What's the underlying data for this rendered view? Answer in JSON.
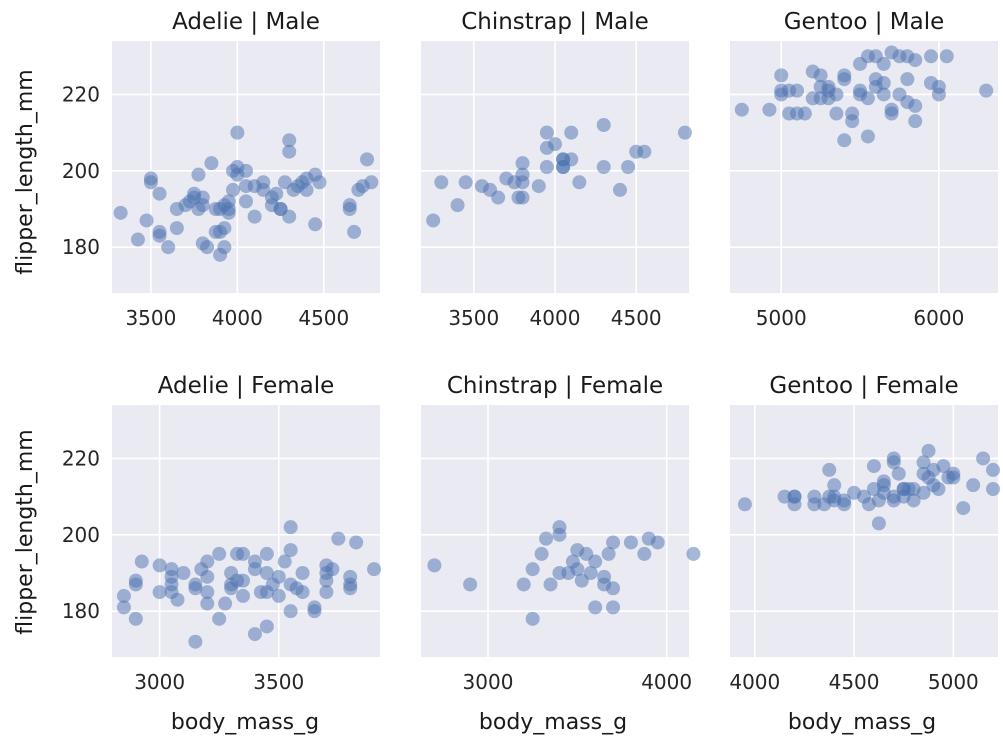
{
  "chart_data": {
    "type": "scatter",
    "xlabel": "body_mass_g",
    "ylabel": "flipper_length_mm",
    "ylim": [
      168,
      234
    ],
    "yticks": [
      180,
      200,
      220
    ],
    "grid": true,
    "point_color": "#4c72b0",
    "panel_background": "#eaeaf2",
    "panels": [
      {
        "title": "Adelie | Male",
        "xlim": [
          3275,
          4825
        ],
        "xticks": [
          3500,
          4000,
          4500
        ],
        "points": [
          [
            3325,
            189
          ],
          [
            3425,
            182
          ],
          [
            3475,
            187
          ],
          [
            3500,
            198
          ],
          [
            3500,
            197
          ],
          [
            3550,
            194
          ],
          [
            3550,
            183
          ],
          [
            3550,
            184
          ],
          [
            3600,
            180
          ],
          [
            3650,
            190
          ],
          [
            3650,
            185
          ],
          [
            3700,
            191
          ],
          [
            3725,
            192
          ],
          [
            3750,
            193
          ],
          [
            3750,
            194
          ],
          [
            3775,
            199
          ],
          [
            3775,
            190
          ],
          [
            3800,
            181
          ],
          [
            3800,
            191
          ],
          [
            3800,
            193
          ],
          [
            3825,
            180
          ],
          [
            3850,
            202
          ],
          [
            3875,
            190
          ],
          [
            3875,
            184
          ],
          [
            3900,
            190
          ],
          [
            3900,
            184
          ],
          [
            3900,
            178
          ],
          [
            3925,
            180
          ],
          [
            3925,
            191
          ],
          [
            3925,
            185
          ],
          [
            3950,
            189
          ],
          [
            3950,
            192
          ],
          [
            3950,
            190
          ],
          [
            3975,
            195
          ],
          [
            3975,
            200
          ],
          [
            4000,
            201
          ],
          [
            4000,
            210
          ],
          [
            4000,
            199
          ],
          [
            4050,
            196
          ],
          [
            4050,
            200
          ],
          [
            4050,
            192
          ],
          [
            4100,
            196
          ],
          [
            4100,
            188
          ],
          [
            4150,
            197
          ],
          [
            4150,
            195
          ],
          [
            4200,
            191
          ],
          [
            4200,
            193
          ],
          [
            4225,
            194
          ],
          [
            4250,
            190
          ],
          [
            4250,
            190
          ],
          [
            4275,
            197
          ],
          [
            4300,
            205
          ],
          [
            4300,
            208
          ],
          [
            4300,
            188
          ],
          [
            4325,
            195
          ],
          [
            4350,
            196
          ],
          [
            4375,
            197
          ],
          [
            4400,
            198
          ],
          [
            4400,
            195
          ],
          [
            4450,
            199
          ],
          [
            4450,
            186
          ],
          [
            4475,
            197
          ],
          [
            4650,
            190
          ],
          [
            4650,
            191
          ],
          [
            4675,
            184
          ],
          [
            4700,
            195
          ],
          [
            4725,
            196
          ],
          [
            4750,
            203
          ],
          [
            4775,
            197
          ]
        ]
      },
      {
        "title": "Chinstrap | Male",
        "xlim": [
          3175,
          4825
        ],
        "xticks": [
          3500,
          4000,
          4500
        ],
        "points": [
          [
            3250,
            187
          ],
          [
            3300,
            197
          ],
          [
            3400,
            191
          ],
          [
            3450,
            197
          ],
          [
            3550,
            196
          ],
          [
            3600,
            195
          ],
          [
            3650,
            193
          ],
          [
            3700,
            198
          ],
          [
            3750,
            197
          ],
          [
            3775,
            193
          ],
          [
            3800,
            197
          ],
          [
            3800,
            202
          ],
          [
            3800,
            199
          ],
          [
            3800,
            193
          ],
          [
            3900,
            196
          ],
          [
            3950,
            206
          ],
          [
            3950,
            210
          ],
          [
            3950,
            201
          ],
          [
            4000,
            207
          ],
          [
            4050,
            203
          ],
          [
            4050,
            201
          ],
          [
            4050,
            203
          ],
          [
            4050,
            201
          ],
          [
            4100,
            203
          ],
          [
            4100,
            210
          ],
          [
            4150,
            197
          ],
          [
            4300,
            201
          ],
          [
            4300,
            212
          ],
          [
            4400,
            195
          ],
          [
            4450,
            201
          ],
          [
            4500,
            205
          ],
          [
            4550,
            205
          ],
          [
            4800,
            210
          ]
        ]
      },
      {
        "title": "Gentoo | Male",
        "xlim": [
          4675,
          6375
        ],
        "xticks": [
          5000,
          6000
        ],
        "points": [
          [
            4750,
            216
          ],
          [
            4925,
            216
          ],
          [
            5000,
            225
          ],
          [
            5000,
            221
          ],
          [
            5000,
            220
          ],
          [
            5050,
            215
          ],
          [
            5050,
            221
          ],
          [
            5100,
            215
          ],
          [
            5100,
            221
          ],
          [
            5150,
            215
          ],
          [
            5200,
            219
          ],
          [
            5200,
            226
          ],
          [
            5250,
            222
          ],
          [
            5250,
            225
          ],
          [
            5250,
            219
          ],
          [
            5300,
            219
          ],
          [
            5300,
            221
          ],
          [
            5300,
            222
          ],
          [
            5350,
            215
          ],
          [
            5350,
            220
          ],
          [
            5400,
            224
          ],
          [
            5400,
            225
          ],
          [
            5400,
            208
          ],
          [
            5450,
            213
          ],
          [
            5450,
            215
          ],
          [
            5500,
            220
          ],
          [
            5500,
            221
          ],
          [
            5500,
            228
          ],
          [
            5550,
            209
          ],
          [
            5550,
            219
          ],
          [
            5550,
            230
          ],
          [
            5600,
            222
          ],
          [
            5600,
            224
          ],
          [
            5600,
            230
          ],
          [
            5650,
            223
          ],
          [
            5650,
            220
          ],
          [
            5650,
            228
          ],
          [
            5700,
            216
          ],
          [
            5700,
            231
          ],
          [
            5700,
            215
          ],
          [
            5750,
            220
          ],
          [
            5750,
            230
          ],
          [
            5800,
            224
          ],
          [
            5800,
            218
          ],
          [
            5800,
            230
          ],
          [
            5850,
            217
          ],
          [
            5850,
            213
          ],
          [
            5850,
            229
          ],
          [
            5950,
            223
          ],
          [
            5950,
            230
          ],
          [
            6000,
            220
          ],
          [
            6000,
            222
          ],
          [
            6050,
            230
          ],
          [
            6300,
            221
          ]
        ]
      },
      {
        "title": "Adelie | Female",
        "xlim": [
          2800,
          3925
        ],
        "xticks": [
          3000,
          3500
        ],
        "points": [
          [
            2850,
            181
          ],
          [
            2850,
            184
          ],
          [
            2900,
            187
          ],
          [
            2900,
            188
          ],
          [
            2900,
            178
          ],
          [
            2925,
            193
          ],
          [
            3000,
            185
          ],
          [
            3000,
            192
          ],
          [
            3050,
            185
          ],
          [
            3050,
            187
          ],
          [
            3050,
            191
          ],
          [
            3050,
            189
          ],
          [
            3075,
            183
          ],
          [
            3100,
            190
          ],
          [
            3150,
            172
          ],
          [
            3150,
            186
          ],
          [
            3150,
            187
          ],
          [
            3175,
            191
          ],
          [
            3200,
            182
          ],
          [
            3200,
            185
          ],
          [
            3200,
            193
          ],
          [
            3200,
            189
          ],
          [
            3250,
            178
          ],
          [
            3250,
            195
          ],
          [
            3275,
            182
          ],
          [
            3300,
            187
          ],
          [
            3300,
            190
          ],
          [
            3300,
            186
          ],
          [
            3325,
            188
          ],
          [
            3325,
            195
          ],
          [
            3350,
            184
          ],
          [
            3350,
            188
          ],
          [
            3350,
            195
          ],
          [
            3400,
            174
          ],
          [
            3400,
            191
          ],
          [
            3400,
            193
          ],
          [
            3425,
            185
          ],
          [
            3450,
            176
          ],
          [
            3450,
            190
          ],
          [
            3450,
            185
          ],
          [
            3450,
            195
          ],
          [
            3475,
            187
          ],
          [
            3500,
            184
          ],
          [
            3500,
            189
          ],
          [
            3525,
            193
          ],
          [
            3550,
            202
          ],
          [
            3550,
            180
          ],
          [
            3550,
            187
          ],
          [
            3550,
            196
          ],
          [
            3575,
            186
          ],
          [
            3600,
            190
          ],
          [
            3600,
            185
          ],
          [
            3650,
            181
          ],
          [
            3650,
            180
          ],
          [
            3700,
            185
          ],
          [
            3700,
            192
          ],
          [
            3700,
            188
          ],
          [
            3700,
            190
          ],
          [
            3725,
            191
          ],
          [
            3750,
            199
          ],
          [
            3800,
            189
          ],
          [
            3800,
            186
          ],
          [
            3800,
            187
          ],
          [
            3825,
            198
          ],
          [
            3900,
            191
          ]
        ]
      },
      {
        "title": "Chinstrap | Female",
        "xlim": [
          2625,
          4125
        ],
        "xticks": [
          3000,
          4000
        ],
        "points": [
          [
            2700,
            192
          ],
          [
            2900,
            187
          ],
          [
            3200,
            187
          ],
          [
            3250,
            191
          ],
          [
            3250,
            178
          ],
          [
            3300,
            195
          ],
          [
            3325,
            199
          ],
          [
            3350,
            187
          ],
          [
            3400,
            190
          ],
          [
            3400,
            200
          ],
          [
            3400,
            202
          ],
          [
            3450,
            190
          ],
          [
            3475,
            193
          ],
          [
            3500,
            191
          ],
          [
            3500,
            196
          ],
          [
            3525,
            188
          ],
          [
            3550,
            195
          ],
          [
            3575,
            190
          ],
          [
            3600,
            181
          ],
          [
            3600,
            193
          ],
          [
            3650,
            189
          ],
          [
            3650,
            187
          ],
          [
            3675,
            195
          ],
          [
            3700,
            198
          ],
          [
            3700,
            186
          ],
          [
            3700,
            181
          ],
          [
            3800,
            198
          ],
          [
            3875,
            195
          ],
          [
            3900,
            199
          ],
          [
            3950,
            198
          ],
          [
            4150,
            195
          ]
        ]
      },
      {
        "title": "Gentoo | Female",
        "xlim": [
          3875,
          5225
        ],
        "xticks": [
          4000,
          4500,
          5000
        ],
        "points": [
          [
            3950,
            208
          ],
          [
            4150,
            210
          ],
          [
            4200,
            210
          ],
          [
            4200,
            208
          ],
          [
            4200,
            210
          ],
          [
            4300,
            208
          ],
          [
            4300,
            210
          ],
          [
            4350,
            208
          ],
          [
            4375,
            210
          ],
          [
            4375,
            217
          ],
          [
            4400,
            210
          ],
          [
            4400,
            213
          ],
          [
            4400,
            209
          ],
          [
            4450,
            208
          ],
          [
            4450,
            209
          ],
          [
            4500,
            211
          ],
          [
            4550,
            210
          ],
          [
            4575,
            208
          ],
          [
            4600,
            218
          ],
          [
            4600,
            212
          ],
          [
            4625,
            203
          ],
          [
            4625,
            209
          ],
          [
            4650,
            211
          ],
          [
            4650,
            213
          ],
          [
            4650,
            214
          ],
          [
            4700,
            210
          ],
          [
            4700,
            209
          ],
          [
            4700,
            219
          ],
          [
            4700,
            220
          ],
          [
            4725,
            216
          ],
          [
            4750,
            212
          ],
          [
            4750,
            212
          ],
          [
            4750,
            210
          ],
          [
            4775,
            212
          ],
          [
            4800,
            209
          ],
          [
            4800,
            212
          ],
          [
            4850,
            211
          ],
          [
            4850,
            216
          ],
          [
            4850,
            219
          ],
          [
            4875,
            222
          ],
          [
            4875,
            215
          ],
          [
            4900,
            217
          ],
          [
            4900,
            213
          ],
          [
            4925,
            212
          ],
          [
            4950,
            218
          ],
          [
            4975,
            215
          ],
          [
            5000,
            216
          ],
          [
            5000,
            215
          ],
          [
            5050,
            207
          ],
          [
            5100,
            213
          ],
          [
            5150,
            220
          ],
          [
            5200,
            212
          ],
          [
            5200,
            217
          ]
        ]
      }
    ]
  }
}
